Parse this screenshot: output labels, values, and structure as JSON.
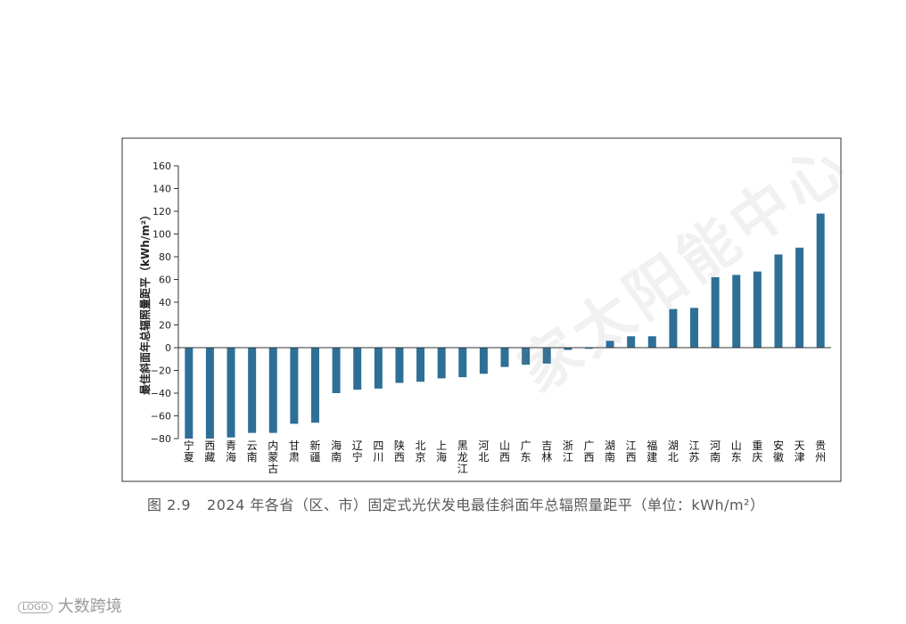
{
  "caption": {
    "number": "图 2.9",
    "text": "2024 年各省（区、市）固定式光伏发电最佳斜面年总辐照量距平（单位：kWh/m²）"
  },
  "watermark": {
    "bottom_left": "大数跨境",
    "logo_text": "LOGO",
    "diagonal": "家太阳能中心"
  },
  "chart_data": {
    "type": "bar",
    "ylabel": "最佳斜面年总辐照量距平（kWh/m²）",
    "ylim": [
      -80,
      160
    ],
    "yticks": [
      -80,
      -60,
      -40,
      -20,
      0,
      20,
      40,
      60,
      80,
      100,
      120,
      140,
      160
    ],
    "bar_color": "#2e6f97",
    "grid": false,
    "categories": [
      "宁夏",
      "西藏",
      "青海",
      "云南",
      "内蒙古",
      "甘肃",
      "新疆",
      "海南",
      "辽宁",
      "四川",
      "陕西",
      "北京",
      "上海",
      "黑龙江",
      "河北",
      "山西",
      "广东",
      "吉林",
      "浙江",
      "广西",
      "湖南",
      "江西",
      "福建",
      "湖北",
      "江苏",
      "河南",
      "山东",
      "重庆",
      "安徽",
      "天津",
      "贵州"
    ],
    "values": [
      -80,
      -80,
      -79,
      -75,
      -75,
      -67,
      -66,
      -40,
      -37,
      -36,
      -31,
      -30,
      -27,
      -26,
      -23,
      -17,
      -15,
      -14,
      -2,
      -1,
      6,
      10,
      10,
      34,
      35,
      62,
      64,
      67,
      82,
      88,
      118
    ]
  }
}
